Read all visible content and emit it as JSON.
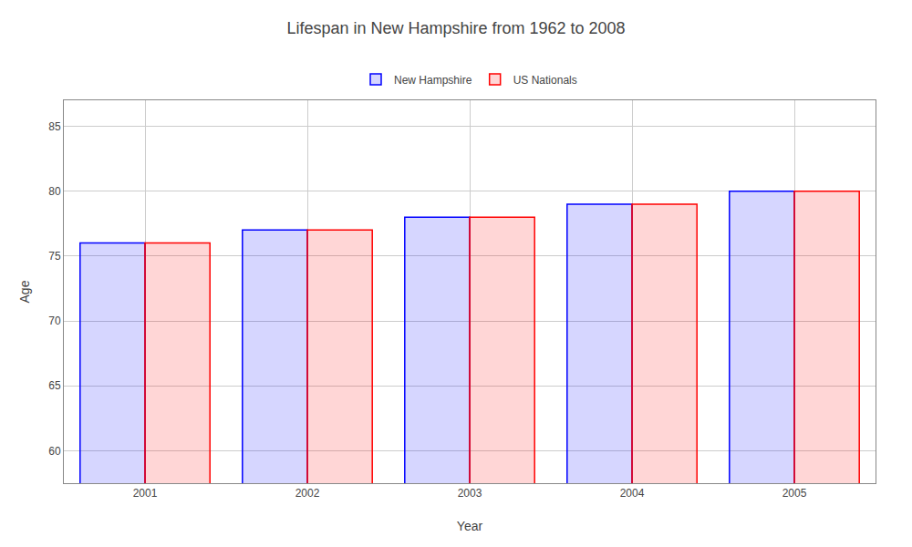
{
  "chart_data": {
    "type": "bar",
    "title": "Lifespan in New Hampshire from 1962 to 2008",
    "categories": [
      "2001",
      "2002",
      "2003",
      "2004",
      "2005"
    ],
    "series": [
      {
        "name": "New Hampshire",
        "color": "#0000ff",
        "values": [
          76,
          77,
          78,
          79,
          80
        ]
      },
      {
        "name": "US Nationals",
        "color": "#ff0000",
        "values": [
          76,
          77,
          78,
          79,
          80
        ]
      }
    ],
    "xlabel": "Year",
    "ylabel": "Age",
    "ylim": [
      57.5,
      87
    ],
    "yticks": [
      60,
      65,
      70,
      75,
      80,
      85
    ],
    "grid": true,
    "legend": "top"
  }
}
